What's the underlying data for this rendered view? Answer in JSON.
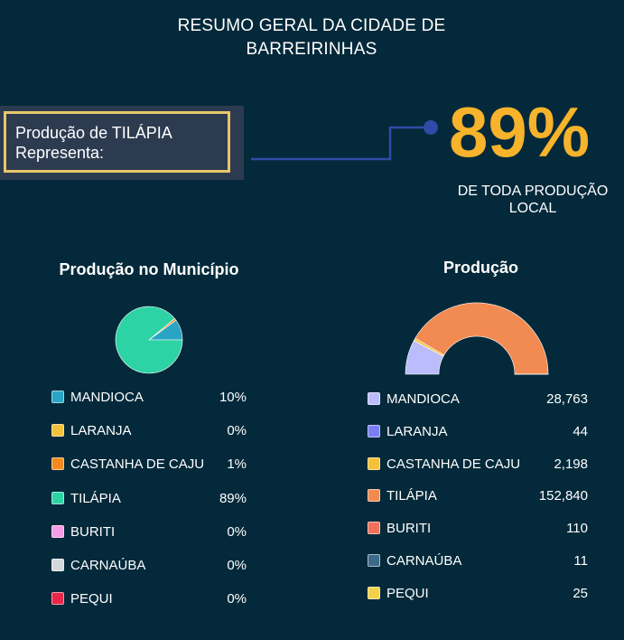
{
  "header": {
    "title_line1": "RESUMO GERAL DA CIDADE DE",
    "title_line2": "BARREIRINHAS"
  },
  "callout": {
    "line1": "Produção de TILÁPIA",
    "line2": "Representa:",
    "percent": "89%",
    "caption_line1": "DE TODA PRODUÇÃO",
    "caption_line2": "LOCAL",
    "accent_color": "#f6b32b",
    "box_border_color": "#e7c76a"
  },
  "chart_data": [
    {
      "type": "pie",
      "title": "Produção no Município",
      "legend_position": "bottom",
      "categories": [
        "MANDIOCA",
        "LARANJA",
        "CASTANHA DE CAJU",
        "TILÁPIA",
        "BURITI",
        "CARNAÚBA",
        "PEQUI"
      ],
      "values": [
        10,
        0,
        1,
        89,
        0,
        0,
        0
      ],
      "value_labels": [
        "10%",
        "0%",
        "1%",
        "89%",
        "0%",
        "0%",
        "0%"
      ],
      "colors": [
        "#2aa4c4",
        "#f3c13a",
        "#f28b1e",
        "#2ed3a5",
        "#f59ee6",
        "#d3d8dc",
        "#e8264a"
      ]
    },
    {
      "type": "pie",
      "variant": "half-donut",
      "title": "Produção",
      "legend_position": "bottom",
      "categories": [
        "MANDIOCA",
        "LARANJA",
        "CASTANHA DE CAJU",
        "TILÁPIA",
        "BURITI",
        "CARNAÚBA",
        "PEQUI"
      ],
      "values": [
        28763,
        44,
        2198,
        152840,
        110,
        11,
        25
      ],
      "value_labels": [
        "28,763",
        "44",
        "2,198",
        "152,840",
        "110",
        "11",
        "25"
      ],
      "colors": [
        "#bbbcfb",
        "#7b7ef5",
        "#f3c13a",
        "#f28b52",
        "#f0715a",
        "#3e6a8a",
        "#f2d14a"
      ]
    }
  ]
}
